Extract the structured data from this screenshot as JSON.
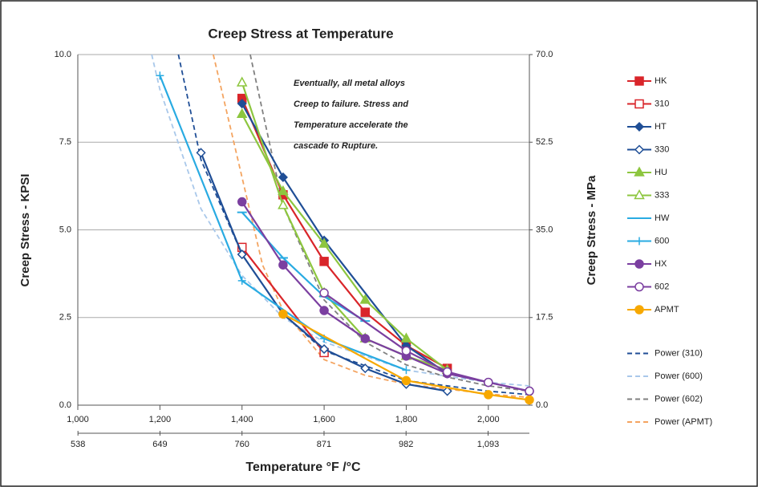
{
  "chart_data": {
    "type": "line",
    "title": "Creep Stress at Temperature",
    "y_label": "Creep Stress - KPSI",
    "y2_label": "Creep  Stress - MPa",
    "x_label": "Temperature °F /°C",
    "annotation_lines": [
      "Eventually, all metal alloys",
      "Creep to failure. Stress and",
      "Temperature accelerate the",
      "cascade to Rupture."
    ],
    "xlim": [
      1000,
      2100
    ],
    "xticks": [
      {
        "value": 1000,
        "label": "1,000"
      },
      {
        "value": 1200,
        "label": "1,200"
      },
      {
        "value": 1400,
        "label": "1,400"
      },
      {
        "value": 1600,
        "label": "1,600"
      },
      {
        "value": 1800,
        "label": "1,800"
      },
      {
        "value": 2000,
        "label": "2,000"
      }
    ],
    "x2lim": [
      537.8,
      1148.9
    ],
    "x2ticks": [
      538,
      649,
      760,
      871,
      982,
      {
        "value": 1093,
        "label": "1,093"
      }
    ],
    "ylim": [
      0,
      10
    ],
    "yticks": [
      {
        "value": 0,
        "label": "0.0"
      },
      {
        "value": 2.5,
        "label": "2.5"
      },
      {
        "value": 5,
        "label": "5.0"
      },
      {
        "value": 7.5,
        "label": "7.5"
      },
      {
        "value": 10,
        "label": "10.0"
      }
    ],
    "y2lim": [
      0,
      70
    ],
    "y2ticks": [
      {
        "value": 0,
        "label": "0.0"
      },
      {
        "value": 17.5,
        "label": "17.5"
      },
      {
        "value": 35,
        "label": "35.0"
      },
      {
        "value": 52.5,
        "label": "52.5"
      },
      {
        "value": 70,
        "label": "70.0"
      }
    ],
    "grid": true,
    "series": [
      {
        "name": "HK",
        "color": "#d9252a",
        "marker": "square",
        "x": [
          1400,
          1500,
          1600,
          1700,
          1800,
          1900
        ],
        "values": [
          8.75,
          6.0,
          4.1,
          2.65,
          1.7,
          1.05
        ]
      },
      {
        "name": "310",
        "color": "#d9252a",
        "marker": "open-square",
        "x": [
          1400,
          1600
        ],
        "values": [
          4.5,
          1.5
        ]
      },
      {
        "name": "HT",
        "color": "#1f4e96",
        "marker": "diamond",
        "x": [
          1400,
          1500,
          1600,
          1800,
          1900
        ],
        "values": [
          8.6,
          6.5,
          4.7,
          1.7,
          0.9
        ]
      },
      {
        "name": "330",
        "color": "#1f4e96",
        "marker": "open-diamond",
        "x": [
          1300,
          1400,
          1500,
          1600,
          1700,
          1800,
          1900
        ],
        "values": [
          7.2,
          4.3,
          2.6,
          1.6,
          1.05,
          0.6,
          0.4
        ]
      },
      {
        "name": "HU",
        "color": "#8dc63f",
        "marker": "triangle",
        "x": [
          1400,
          1500,
          1600,
          1700,
          1800,
          1900
        ],
        "values": [
          8.3,
          6.1,
          4.6,
          3.0,
          1.9,
          1.0
        ]
      },
      {
        "name": "333",
        "color": "#8dc63f",
        "marker": "open-triangle",
        "x": [
          1400,
          1500,
          1600,
          1700,
          1800,
          1900
        ],
        "values": [
          9.2,
          5.7,
          3.2,
          1.9,
          1.4,
          1.0
        ]
      },
      {
        "name": "HW",
        "color": "#29abe2",
        "marker": "dash",
        "x": [
          1400,
          1500,
          1600,
          1700
        ],
        "values": [
          5.5,
          4.2,
          3.1,
          2.4
        ]
      },
      {
        "name": "600",
        "color": "#29abe2",
        "marker": "plus",
        "x": [
          1200,
          1400,
          1600,
          1800
        ],
        "values": [
          9.4,
          3.55,
          1.9,
          1.0
        ]
      },
      {
        "name": "HX",
        "color": "#7b3fa0",
        "marker": "circle",
        "x": [
          1400,
          1500,
          1600,
          1700,
          1800,
          1900,
          2000,
          2100
        ],
        "values": [
          5.8,
          4.0,
          2.7,
          1.9,
          1.4,
          0.9,
          0.65,
          0.4
        ]
      },
      {
        "name": "602",
        "color": "#7b3fa0",
        "marker": "open-circle",
        "x": [
          1600,
          1800,
          1900,
          2000,
          2100
        ],
        "values": [
          3.2,
          1.55,
          0.95,
          0.65,
          0.4
        ]
      },
      {
        "name": "APMT",
        "color": "#f7a800",
        "marker": "circle",
        "x": [
          1500,
          1800,
          2000,
          2100
        ],
        "values": [
          2.6,
          0.7,
          0.3,
          0.15
        ]
      },
      {
        "name": "Power (310)",
        "color": "#1f4e96",
        "dash": true,
        "x": [
          1245,
          1300,
          1400,
          1500,
          1600,
          1800,
          2000,
          2100
        ],
        "values": [
          10,
          7.0,
          4.3,
          2.6,
          1.55,
          0.7,
          0.4,
          0.3
        ]
      },
      {
        "name": "Power (600)",
        "color": "#a9c8ea",
        "dash": true,
        "x": [
          1180,
          1200,
          1300,
          1400,
          1500,
          1600,
          1800,
          2000,
          2100
        ],
        "values": [
          10,
          9.0,
          5.6,
          3.7,
          2.5,
          1.8,
          1.0,
          0.65,
          0.55
        ]
      },
      {
        "name": "Power (602)",
        "color": "#808080",
        "dash": true,
        "x": [
          1420,
          1500,
          1600,
          1700,
          1800,
          1900,
          2000,
          2100
        ],
        "values": [
          10,
          5.7,
          3.0,
          1.8,
          1.15,
          0.8,
          0.55,
          0.4
        ]
      },
      {
        "name": "Power (APMT)",
        "color": "#f4a460",
        "dash": true,
        "x": [
          1330,
          1400,
          1450,
          1500,
          1600,
          1700,
          1800,
          2000,
          2100
        ],
        "values": [
          10,
          6.5,
          4.0,
          2.7,
          1.3,
          0.85,
          0.6,
          0.32,
          0.22
        ]
      }
    ]
  }
}
